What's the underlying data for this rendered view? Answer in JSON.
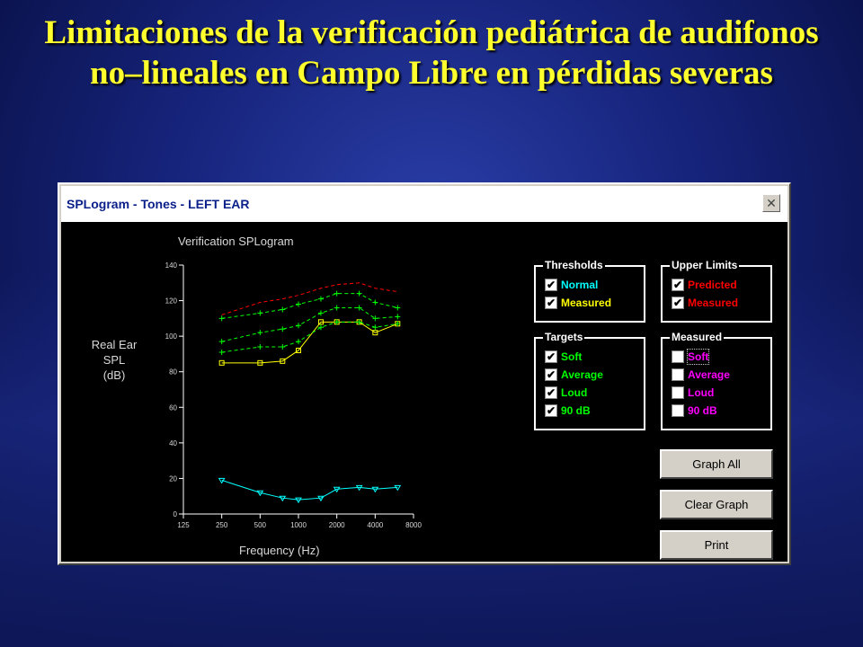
{
  "slide": {
    "title": "Limitaciones de la verificación pediátrica de audifonos no–lineales en Campo Libre en pérdidas severas"
  },
  "window": {
    "title": "SPLogram - Tones - LEFT EAR",
    "close_glyph": "✕"
  },
  "graph": {
    "title": "Verification SPLogram",
    "ylabel_lines": [
      "Real Ear",
      "SPL",
      "(dB)"
    ],
    "xlabel": "Frequency (Hz)"
  },
  "groups": {
    "thresholds": {
      "title": "Thresholds",
      "items": [
        {
          "label": "Normal",
          "checked": true,
          "color": "#00ffff"
        },
        {
          "label": "Measured",
          "checked": true,
          "color": "#ffff00"
        }
      ]
    },
    "upper_limits": {
      "title": "Upper Limits",
      "items": [
        {
          "label": "Predicted",
          "checked": true,
          "color": "#ff0000"
        },
        {
          "label": "Measured",
          "checked": true,
          "color": "#ff0000"
        }
      ]
    },
    "targets": {
      "title": "Targets",
      "items": [
        {
          "label": "Soft",
          "checked": true,
          "color": "#00ff00"
        },
        {
          "label": "Average",
          "checked": true,
          "color": "#00ff00"
        },
        {
          "label": "Loud",
          "checked": true,
          "color": "#00ff00"
        },
        {
          "label": "90 dB",
          "checked": true,
          "color": "#00ff00"
        }
      ]
    },
    "measured": {
      "title": "Measured",
      "items": [
        {
          "label": "Soft",
          "checked": false,
          "color": "#ff00ff"
        },
        {
          "label": "Average",
          "checked": false,
          "color": "#ff00ff"
        },
        {
          "label": "Loud",
          "checked": false,
          "color": "#ff00ff"
        },
        {
          "label": "90 dB",
          "checked": false,
          "color": "#ff00ff"
        }
      ]
    }
  },
  "buttons": {
    "graph_all": "Graph All",
    "clear_graph": "Clear Graph",
    "print": "Print"
  },
  "chart_data": {
    "type": "line",
    "title": "Verification SPLogram",
    "xlabel": "Frequency (Hz)",
    "ylabel": "Real Ear SPL (dB)",
    "x_scale": "log",
    "x_ticks": [
      125,
      250,
      500,
      1000,
      2000,
      4000,
      8000
    ],
    "y_ticks": [
      0,
      20,
      40,
      60,
      80,
      100,
      120,
      140
    ],
    "ylim": [
      0,
      140
    ],
    "xlim": [
      125,
      8000
    ],
    "grid": false,
    "series": [
      {
        "name": "Normal",
        "color": "#00ffff",
        "style": "solid",
        "marker": "triangle",
        "x": [
          250,
          500,
          750,
          1000,
          1500,
          2000,
          3000,
          4000,
          6000
        ],
        "y": [
          19,
          12,
          9,
          8,
          9,
          14,
          15,
          14,
          15
        ]
      },
      {
        "name": "Measured",
        "color": "#ffff00",
        "style": "solid",
        "marker": "square",
        "x": [
          250,
          500,
          750,
          1000,
          1500,
          2000,
          3000,
          4000,
          6000
        ],
        "y": [
          85,
          85,
          86,
          92,
          108,
          108,
          108,
          102,
          107
        ]
      },
      {
        "name": "Predicted",
        "color": "#ff0000",
        "style": "dashed",
        "marker": "none",
        "x": [
          250,
          500,
          750,
          1000,
          1500,
          2000,
          3000,
          4000,
          6000
        ],
        "y": [
          112,
          119,
          121,
          123,
          127,
          129,
          130,
          127,
          125
        ]
      },
      {
        "name": "Loud",
        "color": "#00ff00",
        "style": "dashed",
        "marker": "plus",
        "x": [
          250,
          500,
          750,
          1000,
          1500,
          2000,
          3000,
          4000,
          6000
        ],
        "y": [
          110,
          113,
          115,
          118,
          121,
          124,
          124,
          119,
          116
        ]
      },
      {
        "name": "Average",
        "color": "#00ff00",
        "style": "dashed",
        "marker": "plus",
        "x": [
          250,
          500,
          750,
          1000,
          1500,
          2000,
          3000,
          4000,
          6000
        ],
        "y": [
          97,
          102,
          104,
          106,
          113,
          116,
          116,
          110,
          111
        ]
      },
      {
        "name": "Soft",
        "color": "#00ff00",
        "style": "dashed",
        "marker": "plus",
        "x": [
          250,
          500,
          750,
          1000,
          1500,
          2000,
          3000,
          4000,
          6000
        ],
        "y": [
          91,
          94,
          94,
          97,
          105,
          108,
          108,
          105,
          107
        ]
      }
    ]
  }
}
